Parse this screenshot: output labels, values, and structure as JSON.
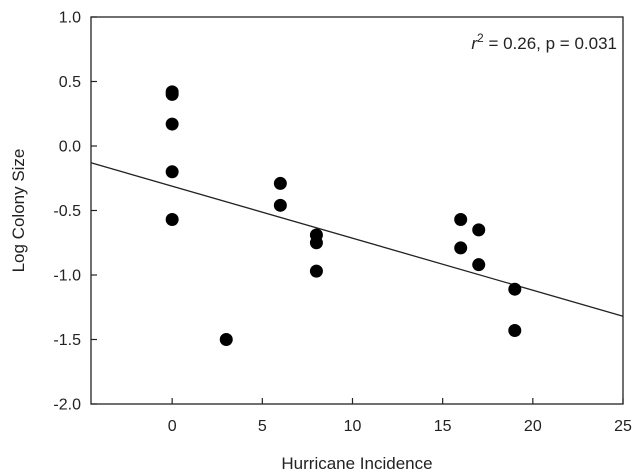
{
  "chart_data": {
    "type": "scatter",
    "xlabel": "Hurricane Incidence",
    "ylabel": "Log Colony Size",
    "xlim": [
      -4.5,
      25
    ],
    "ylim": [
      -2.0,
      1.0
    ],
    "xticks": [
      0,
      5,
      10,
      15,
      20,
      25
    ],
    "yticks": [
      -2.0,
      -1.5,
      -1.0,
      -0.5,
      0.0,
      0.5,
      1.0
    ],
    "xtick_labels": [
      "0",
      "5",
      "10",
      "15",
      "20",
      "25"
    ],
    "ytick_labels": [
      "-2.0",
      "-1.5",
      "-1.0",
      "-0.5",
      "0.0",
      "0.5",
      "1.0"
    ],
    "grid": false,
    "series": [
      {
        "points": [
          {
            "x": 0,
            "y": 0.42
          },
          {
            "x": 0,
            "y": 0.4
          },
          {
            "x": 0,
            "y": 0.17
          },
          {
            "x": 0,
            "y": -0.2
          },
          {
            "x": 0,
            "y": -0.57
          },
          {
            "x": 3,
            "y": -1.5
          },
          {
            "x": 6,
            "y": -0.29
          },
          {
            "x": 6,
            "y": -0.46
          },
          {
            "x": 8,
            "y": -0.69
          },
          {
            "x": 8,
            "y": -0.75
          },
          {
            "x": 8,
            "y": -0.97
          },
          {
            "x": 16,
            "y": -0.57
          },
          {
            "x": 16,
            "y": -0.79
          },
          {
            "x": 17,
            "y": -0.65
          },
          {
            "x": 17,
            "y": -0.92
          },
          {
            "x": 19,
            "y": -1.11
          },
          {
            "x": 19,
            "y": -1.43
          }
        ]
      }
    ],
    "regression": {
      "x0": -4.5,
      "y0": -0.13,
      "x1": 25,
      "y1": -1.32
    },
    "annotation": {
      "prefix": "r",
      "superscript": "2",
      "suffix": " = 0.26, p = 0.031"
    }
  }
}
